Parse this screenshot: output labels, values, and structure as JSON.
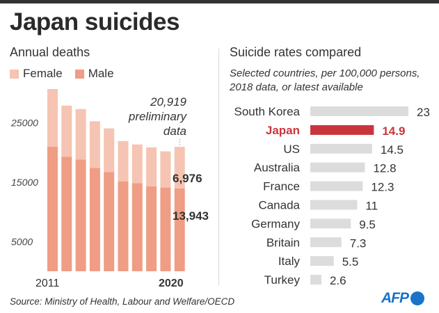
{
  "title": "Japan suicides",
  "left": {
    "subtitle": "Annual deaths",
    "legend": [
      {
        "label": "Female",
        "color": "#f5c4b2"
      },
      {
        "label": "Male",
        "color": "#ef9d84"
      }
    ],
    "annotation": [
      "20,919",
      "preliminary",
      "data"
    ]
  },
  "right": {
    "subtitle": "Suicide rates compared",
    "note": [
      "Selected countries, per 100,000 persons,",
      "2018 data, or latest available"
    ]
  },
  "source": "Source: Ministry of Health, Labour and Welfare/OECD",
  "logo": "AFP",
  "chart_data": [
    {
      "type": "bar",
      "stacked": true,
      "x_tick_labels": [
        "2011",
        "2020"
      ],
      "ytick_labels": [
        "25000",
        "15000",
        "5000"
      ],
      "ylim": [
        0,
        31000
      ],
      "categories": [
        "2011",
        "2012",
        "2013",
        "2014",
        "2015",
        "2016",
        "2017",
        "2018",
        "2019",
        "2020"
      ],
      "series": [
        {
          "name": "Male",
          "color": "#ef9d84",
          "values": [
            20955,
            19273,
            18787,
            17386,
            16681,
            15121,
            14826,
            14290,
            14078,
            13943
          ]
        },
        {
          "name": "Female",
          "color": "#f5c4b2",
          "values": [
            9696,
            8585,
            8496,
            7841,
            7344,
            6776,
            6495,
            6550,
            6091,
            6976
          ]
        }
      ],
      "data_labels": [
        "6,976",
        "13,943"
      ]
    },
    {
      "type": "bar",
      "orientation": "horizontal",
      "categories": [
        "South Korea",
        "Japan",
        "US",
        "Australia",
        "France",
        "Canada",
        "Germany",
        "Britain",
        "Italy",
        "Turkey"
      ],
      "values": [
        23,
        14.9,
        14.5,
        12.8,
        12.3,
        11,
        9.5,
        7.3,
        5.5,
        2.6
      ],
      "value_labels": [
        "23",
        "14.9",
        "14.5",
        "12.8",
        "12.3",
        "11",
        "9.5",
        "7.3",
        "5.5",
        "2.6"
      ],
      "highlight": "Japan",
      "colors": {
        "default": "#dcdcdc",
        "highlight": "#c8363c"
      },
      "xlim": [
        0,
        23
      ]
    }
  ]
}
